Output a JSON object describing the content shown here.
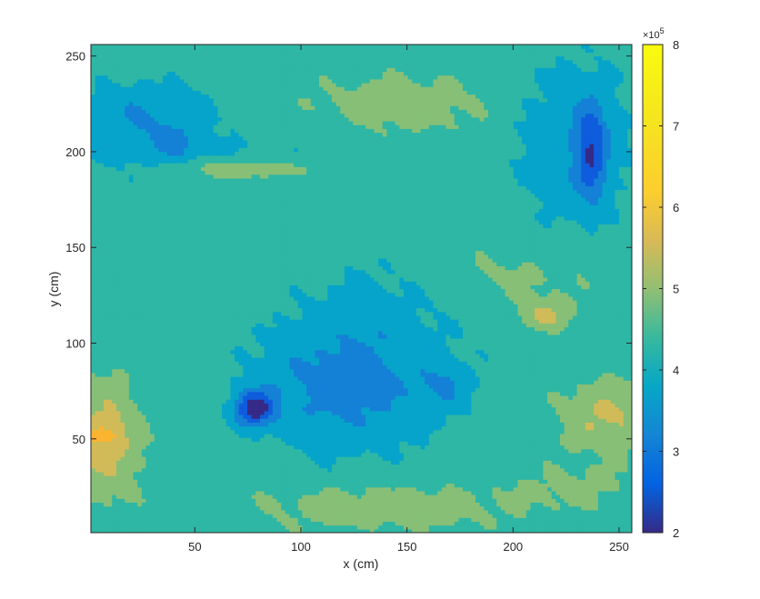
{
  "chart_data": {
    "type": "contour",
    "title": "",
    "xlabel": "x (cm)",
    "ylabel": "y (cm)",
    "xlim": [
      1,
      256
    ],
    "ylim": [
      1,
      256
    ],
    "xticks": [
      50,
      100,
      150,
      200,
      250
    ],
    "yticks": [
      50,
      100,
      150,
      200,
      250
    ],
    "grid": false,
    "colorbar": {
      "position": "right",
      "colormap": "parula",
      "range": [
        2,
        8
      ],
      "ticks": [
        2,
        3,
        4,
        5,
        6,
        7,
        8
      ],
      "exponent_label": "×10",
      "exponent_power": "5"
    },
    "contour_levels": [
      200000,
      300000,
      400000,
      500000,
      600000,
      700000,
      800000
    ],
    "level_colors": [
      "#352a87",
      "#0f5cdd",
      "#1481d6",
      "#06a4ca",
      "#2eb7a4",
      "#87bf77",
      "#d1bb59",
      "#fbb430",
      "#f9fb0e"
    ],
    "blobs": [
      {
        "x": 78,
        "y": 66,
        "sx": 9,
        "sy": 9,
        "a": -3.9
      },
      {
        "x": 110,
        "y": 78,
        "sx": 40,
        "sy": 34,
        "a": -1.3
      },
      {
        "x": 140,
        "y": 80,
        "sx": 45,
        "sy": 38,
        "a": -1.0
      },
      {
        "x": 168,
        "y": 78,
        "sx": 11,
        "sy": 10,
        "a": -1.0
      },
      {
        "x": 135,
        "y": 125,
        "sx": 35,
        "sy": 28,
        "a": -0.6
      },
      {
        "x": 237,
        "y": 200,
        "sx": 7,
        "sy": 25,
        "a": -2.6
      },
      {
        "x": 228,
        "y": 205,
        "sx": 30,
        "sy": 45,
        "a": -1.4
      },
      {
        "x": 25,
        "y": 218,
        "sx": 35,
        "sy": 20,
        "a": -1.6
      },
      {
        "x": 40,
        "y": 205,
        "sx": 10,
        "sy": 8,
        "a": -1.0
      },
      {
        "x": 60,
        "y": 195,
        "sx": 70,
        "sy": 14,
        "a": -0.6
      },
      {
        "x": 70,
        "y": 191,
        "sx": 32,
        "sy": 5,
        "a": 1.8
      },
      {
        "x": 8,
        "y": 50,
        "sx": 16,
        "sy": 28,
        "a": 2.0
      },
      {
        "x": 5,
        "y": 52,
        "sx": 7,
        "sy": 4,
        "a": 1.5
      },
      {
        "x": 245,
        "y": 62,
        "sx": 22,
        "sy": 18,
        "a": 1.6
      },
      {
        "x": 215,
        "y": 115,
        "sx": 12,
        "sy": 8,
        "a": 1.5
      },
      {
        "x": 140,
        "y": 15,
        "sx": 60,
        "sy": 12,
        "a": 1.0
      },
      {
        "x": 150,
        "y": 225,
        "sx": 45,
        "sy": 15,
        "a": 0.9
      },
      {
        "x": 200,
        "y": 135,
        "sx": 40,
        "sy": 18,
        "a": 0.6
      },
      {
        "x": 230,
        "y": 25,
        "sx": 30,
        "sy": 12,
        "a": 0.6
      }
    ]
  }
}
